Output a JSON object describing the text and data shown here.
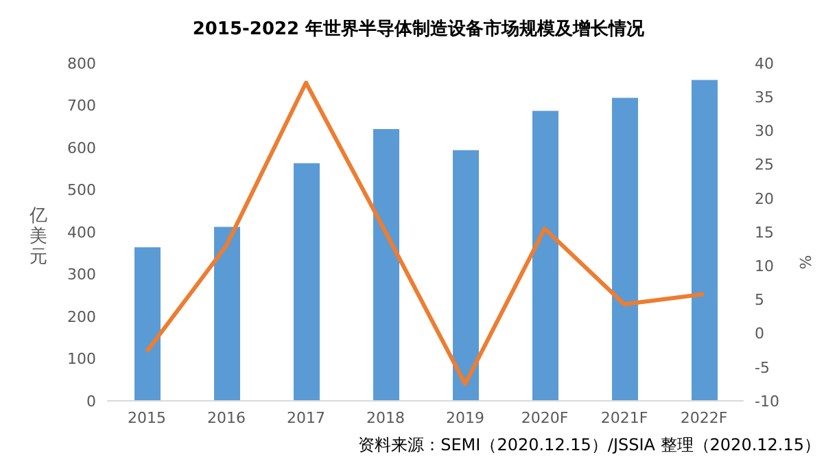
{
  "chart_data": {
    "type": "bar",
    "title": "2015-2022 年世界半导体制造设备市场规模及增长情况",
    "ylabel": "亿美元",
    "y2label": "%",
    "categories": [
      "2015",
      "2016",
      "2017",
      "2018",
      "2019",
      "2020F",
      "2021F",
      "2022F"
    ],
    "series": [
      {
        "color": "#5b9bd5",
        "values": [
          364,
          412,
          563,
          644,
          594,
          687,
          718,
          760
        ]
      },
      {
        "type": "line",
        "axis": "y2",
        "color": "#ed7d31",
        "values": [
          -2.7,
          13,
          37.1,
          15,
          -7.5,
          15.5,
          4.3,
          5.8
        ]
      }
    ],
    "ylim": [
      0,
      800
    ],
    "yticks": [
      0,
      100,
      200,
      300,
      400,
      500,
      600,
      700,
      800
    ],
    "y2lim": [
      -10,
      40
    ],
    "y2ticks": [
      -10,
      -5,
      0,
      5,
      10,
      15,
      20,
      25,
      30,
      35,
      40
    ],
    "grid": false,
    "legend": false,
    "marker": "none",
    "annotations": [
      "资料来源：SEMI（2020.12.15）/JSSIA 整理（2020.12.15）"
    ]
  }
}
